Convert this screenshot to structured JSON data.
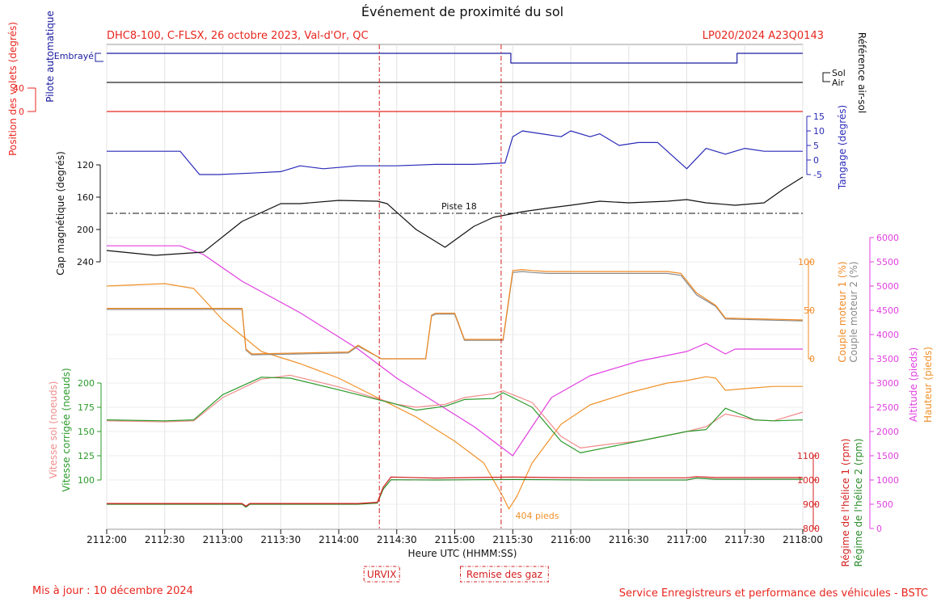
{
  "chart_data": {
    "type": "line",
    "title": "Événement de proximité du sol",
    "subtitle_left": "DHC8-100, C-FLSX, 26 octobre 2023, Val-d'Or, QC",
    "subtitle_right": "LP020/2024 A23Q0143",
    "footer_left": "Mis à jour : 10 décembre 2024",
    "footer_right": "Service Enregistreurs et performance des véhicules - BSTC",
    "xlabel": "Heure UTC (HHMM:SS)",
    "x_ticks": [
      "2112:00",
      "2112:30",
      "2113:00",
      "2113:30",
      "2114:00",
      "2114:30",
      "2115:00",
      "2115:30",
      "2116:00",
      "2116:30",
      "2117:00",
      "2117:30",
      "2118:00"
    ],
    "xlim_seconds": [
      0,
      360
    ],
    "events": [
      {
        "label": "URVIX",
        "t": 141
      },
      {
        "label": "Remise des gaz",
        "t": 204
      }
    ],
    "annotations": {
      "runway": "Piste 18",
      "runway_heading": 180,
      "min_height": "404 pieds",
      "min_height_t": 208
    },
    "axes": {
      "autopilot_label": "Pilote automatique",
      "autopilot_state": "Embrayé",
      "flaps_label": "Position des volets (degrés)",
      "flaps_ticks": [
        "40",
        "0"
      ],
      "air_ground_label": "Référence air-sol",
      "air_ground_states": [
        "Sol",
        "Air"
      ],
      "pitch_label": "Tangage (degrés)",
      "pitch_ticks": [
        "15",
        "10",
        "5",
        "0",
        "-5"
      ],
      "heading_label": "Cap magnétique (degrés)",
      "heading_ticks": [
        "120",
        "160",
        "200",
        "240"
      ],
      "torque1_label": "Couple moteur 1 (%)",
      "torque2_label": "Couple moteur 2 (%)",
      "torque_ticks": [
        "100",
        "50",
        "0"
      ],
      "altitude_label": "Altitude (pieds)",
      "height_label": "Hauteur (pieds)",
      "altitude_ticks": [
        "6000",
        "5500",
        "5000",
        "4500",
        "4000",
        "3500",
        "3000",
        "2500",
        "2000",
        "1500",
        "1000",
        "500",
        "0"
      ],
      "gs_label": "Vitesse sol (noeuds)",
      "cas_label": "Vitesse corrigée (noeuds)",
      "speed_ticks": [
        "200",
        "175",
        "150",
        "125",
        "100"
      ],
      "prop1_label": "Régime de l'hélice 1 (rpm)",
      "prop2_label": "Régime de l'hélice 2 (rpm)",
      "prop_ticks": [
        "1100",
        "1000",
        "900",
        "800"
      ]
    },
    "colors": {
      "autopilot": "#1a1aa0",
      "air_ground": "#222222",
      "flaps": "#e8261f",
      "pitch": "#2a2ab8",
      "heading": "#111111",
      "torque1": "#f08a24",
      "torque2": "#8a8a8a",
      "altitude": "#e040e0",
      "height": "#f0922b",
      "ground_speed": "#f08c8c",
      "cas": "#2a9a2a",
      "prop1": "#d42020",
      "prop2": "#2a8a2a",
      "event": "#d42020"
    },
    "series": [
      {
        "name": "Pilote automatique",
        "unit": "état",
        "x": [
          0,
          209,
          209,
          326,
          326,
          360
        ],
        "y": [
          1,
          1,
          0,
          0,
          1,
          1
        ]
      },
      {
        "name": "Référence air-sol",
        "unit": "état",
        "x": [
          0,
          360
        ],
        "y": [
          0,
          0
        ]
      },
      {
        "name": "Position des volets",
        "unit": "degrés",
        "x": [
          0,
          360
        ],
        "y": [
          0,
          0
        ]
      },
      {
        "name": "Tangage",
        "unit": "degrés",
        "x": [
          0,
          20,
          38,
          48,
          58,
          75,
          90,
          100,
          112,
          130,
          150,
          170,
          190,
          206,
          210,
          215,
          225,
          235,
          240,
          250,
          255,
          265,
          275,
          285,
          300,
          310,
          320,
          330,
          340,
          350,
          360
        ],
        "y": [
          3,
          3,
          3,
          -5,
          -5,
          -4.5,
          -4,
          -2,
          -3,
          -2,
          -2,
          -1.5,
          -1.5,
          -1,
          8,
          10,
          9,
          8,
          10,
          8,
          9,
          5,
          6,
          6,
          -3,
          4,
          2,
          4,
          3,
          3,
          3
        ]
      },
      {
        "name": "Cap magnétique",
        "unit": "degrés",
        "x": [
          0,
          25,
          50,
          70,
          90,
          100,
          120,
          140,
          145,
          160,
          175,
          190,
          200,
          215,
          230,
          240,
          255,
          270,
          290,
          300,
          310,
          325,
          340,
          350,
          360
        ],
        "y": [
          226,
          232,
          228,
          190,
          168,
          168,
          164,
          165,
          168,
          200,
          222,
          196,
          185,
          178,
          173,
          170,
          165,
          167,
          165,
          163,
          167,
          170,
          167,
          150,
          135
        ]
      },
      {
        "name": "Couple moteur 1",
        "unit": "%",
        "x": [
          0,
          38,
          70,
          72,
          75,
          100,
          125,
          130,
          142,
          165,
          168,
          170,
          180,
          185,
          190,
          205,
          210,
          215,
          220,
          228,
          260,
          290,
          297,
          305,
          315,
          320,
          360
        ],
        "y": [
          52,
          52,
          52,
          10,
          5,
          6,
          7,
          14,
          0,
          0,
          45,
          47,
          47,
          20,
          20,
          20,
          91,
          92,
          91,
          90,
          90,
          90,
          88,
          68,
          55,
          42,
          40
        ]
      },
      {
        "name": "Couple moteur 2",
        "unit": "%",
        "x": [
          0,
          38,
          70,
          72,
          75,
          100,
          125,
          130,
          142,
          165,
          168,
          170,
          180,
          185,
          190,
          205,
          210,
          215,
          220,
          228,
          260,
          290,
          297,
          305,
          315,
          320,
          360
        ],
        "y": [
          51,
          51,
          51,
          9,
          4,
          5,
          6,
          13,
          0,
          0,
          44,
          46,
          46,
          19,
          19,
          19,
          89,
          90,
          89,
          88,
          88,
          88,
          86,
          66,
          54,
          41,
          39
        ]
      },
      {
        "name": "Altitude",
        "unit": "pieds",
        "x": [
          0,
          38,
          50,
          70,
          100,
          130,
          150,
          170,
          190,
          205,
          210,
          215,
          230,
          250,
          275,
          300,
          310,
          320,
          325,
          360
        ],
        "y": [
          5830,
          5830,
          5650,
          5100,
          4450,
          3700,
          3100,
          2600,
          2100,
          1650,
          1500,
          1800,
          2700,
          3150,
          3450,
          3650,
          3820,
          3600,
          3700,
          3700
        ]
      },
      {
        "name": "Hauteur",
        "unit": "pieds",
        "x": [
          0,
          30,
          45,
          60,
          80,
          100,
          120,
          140,
          160,
          180,
          195,
          205,
          208,
          212,
          220,
          235,
          250,
          270,
          290,
          300,
          310,
          315,
          320,
          335,
          345,
          360
        ],
        "y": [
          5000,
          5050,
          4950,
          4300,
          3650,
          3400,
          3100,
          2700,
          2300,
          1800,
          1350,
          650,
          404,
          650,
          1350,
          2150,
          2550,
          2800,
          3000,
          3050,
          3130,
          3100,
          2850,
          2900,
          2930,
          2930
        ]
      },
      {
        "name": "Vitesse sol",
        "unit": "noeuds",
        "x": [
          0,
          30,
          45,
          60,
          80,
          95,
          120,
          150,
          160,
          175,
          185,
          200,
          205,
          220,
          235,
          245,
          260,
          275,
          300,
          310,
          320,
          335,
          345,
          360
        ],
        "y": [
          161,
          160,
          161,
          185,
          204,
          208,
          196,
          178,
          175,
          178,
          185,
          189,
          192,
          180,
          145,
          133,
          137,
          140,
          150,
          155,
          168,
          162,
          161,
          170
        ]
      },
      {
        "name": "Vitesse corrigée",
        "unit": "noeuds",
        "x": [
          0,
          30,
          45,
          60,
          80,
          95,
          120,
          150,
          160,
          175,
          185,
          200,
          205,
          220,
          235,
          245,
          260,
          275,
          300,
          310,
          320,
          335,
          345,
          360
        ],
        "y": [
          162,
          161,
          162,
          188,
          206,
          205,
          193,
          178,
          172,
          176,
          183,
          184,
          190,
          175,
          140,
          128,
          134,
          140,
          150,
          152,
          174,
          162,
          161,
          162
        ]
      },
      {
        "name": "Régime de l'hélice 1",
        "unit": "rpm",
        "x": [
          0,
          70,
          72,
          74,
          130,
          140,
          143,
          147,
          170,
          190,
          210,
          230,
          250,
          270,
          300,
          305,
          315,
          360
        ],
        "y": [
          903,
          903,
          892,
          903,
          903,
          908,
          970,
          1012,
          1008,
          1010,
          1012,
          1010,
          1009,
          1009,
          1009,
          1014,
          1010,
          1010
        ]
      },
      {
        "name": "Régime de l'hélice 2",
        "unit": "rpm",
        "x": [
          0,
          70,
          72,
          74,
          130,
          140,
          143,
          147,
          170,
          190,
          210,
          230,
          250,
          270,
          300,
          305,
          315,
          360
        ],
        "y": [
          900,
          900,
          888,
          900,
          900,
          905,
          962,
          1001,
          1000,
          1001,
          1002,
          1001,
          1000,
          1000,
          1000,
          1008,
          1003,
          1003
        ]
      }
    ]
  }
}
